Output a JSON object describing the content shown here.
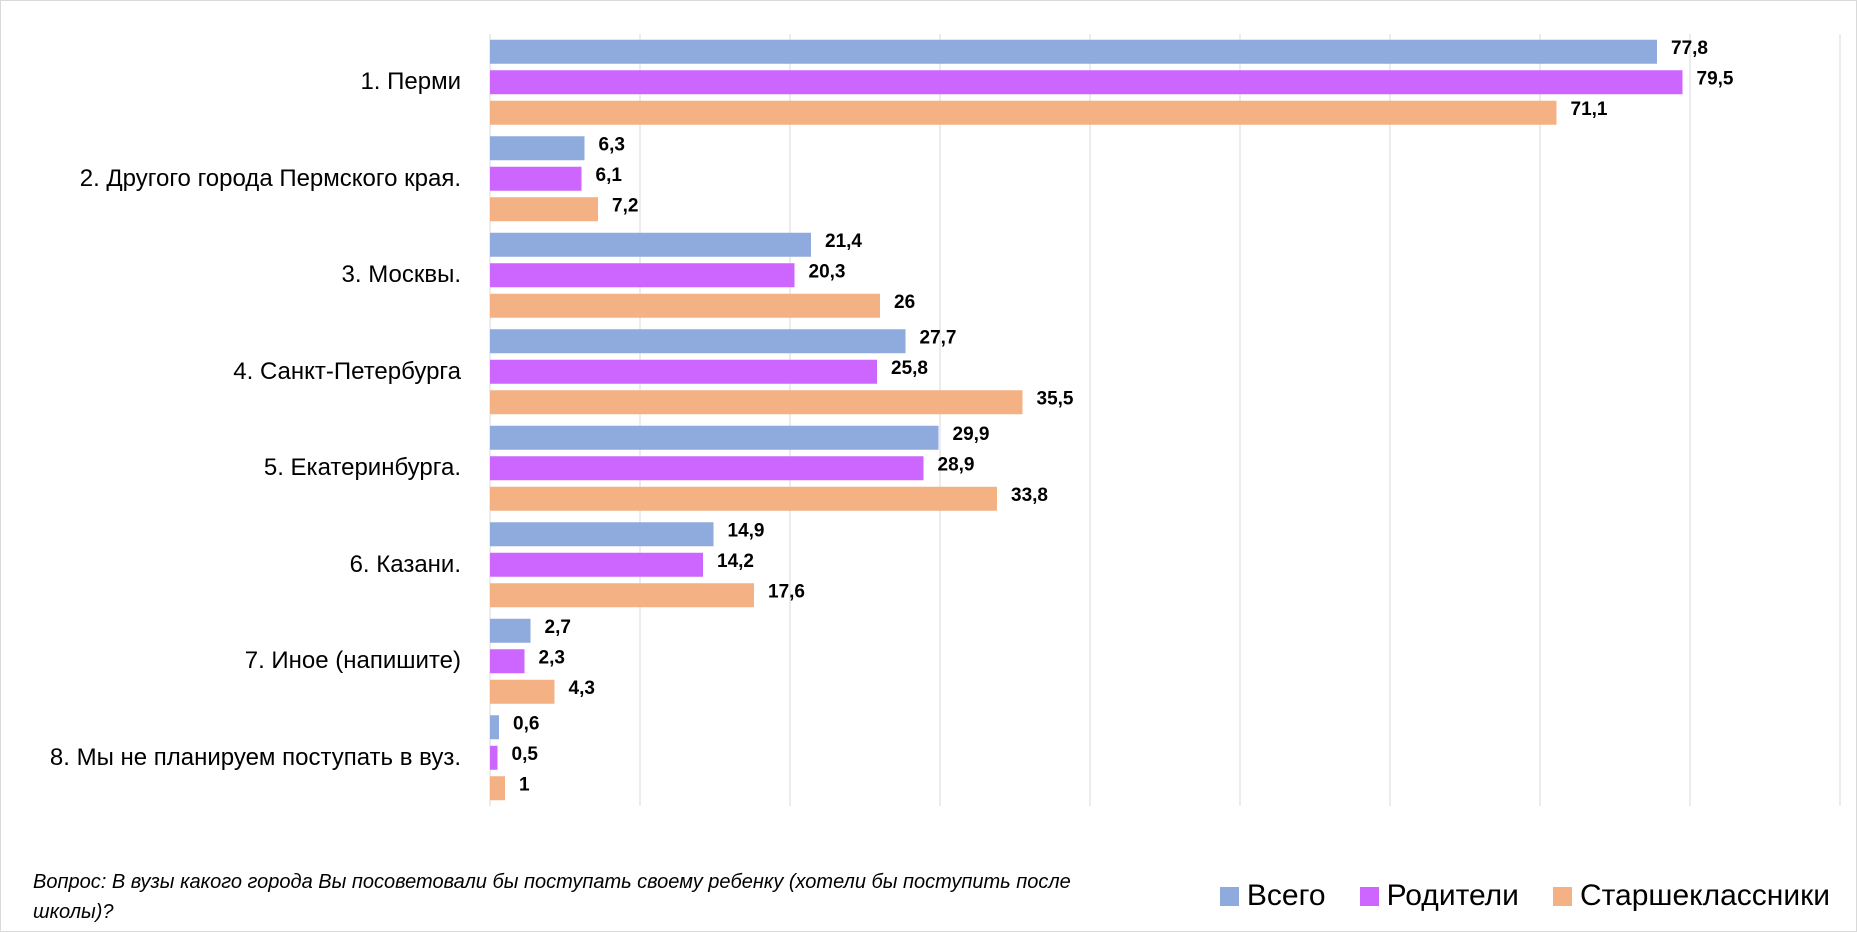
{
  "chart_data": {
    "type": "bar",
    "orientation": "horizontal",
    "categories": [
      "1. Перми",
      "2. Другого города Пермского края.",
      "3. Москвы.",
      "4. Санкт-Петербурга",
      "5. Екатеринбурга.",
      "6. Казани.",
      "7. Иное (напишите)",
      "8. Мы не планируем поступать в вуз."
    ],
    "series": [
      {
        "name": "Всего",
        "color": "#8faadc",
        "values": [
          77.8,
          6.3,
          21.4,
          27.7,
          29.9,
          14.9,
          2.7,
          0.6
        ],
        "value_labels": [
          "77,8",
          "6,3",
          "21,4",
          "27,7",
          "29,9",
          "14,9",
          "2,7",
          "0,6"
        ]
      },
      {
        "name": "Родители",
        "color": "#cc66ff",
        "values": [
          79.5,
          6.1,
          20.3,
          25.8,
          28.9,
          14.2,
          2.3,
          0.5
        ],
        "value_labels": [
          "79,5",
          "6,1",
          "20,3",
          "25,8",
          "28,9",
          "14,2",
          "2,3",
          "0,5"
        ]
      },
      {
        "name": "Старшеклассники",
        "color": "#f4b183",
        "values": [
          71.1,
          7.2,
          26,
          35.5,
          33.8,
          17.6,
          4.3,
          1
        ],
        "value_labels": [
          "71,1",
          "7,2",
          "26",
          "35,5",
          "33,8",
          "17,6",
          "4,3",
          "1"
        ]
      }
    ],
    "xlim": [
      0,
      90
    ],
    "xticks": [
      0,
      10,
      20,
      30,
      40,
      50,
      60,
      70,
      80,
      90
    ],
    "grid": true,
    "note": "Вопрос: В вузы какого города Вы посоветовали бы поступать своему ребенку (хотели бы поступить после школы)?",
    "legend": "bottom-right"
  }
}
